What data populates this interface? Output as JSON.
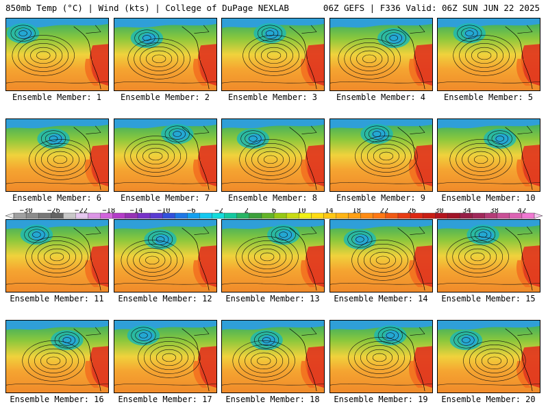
{
  "header": {
    "left": "850mb Temp (°C) | Wind (kts) | College of DuPage NEXLAB",
    "right": "06Z GEFS | F336 Valid: 06Z SUN JUN 22 2025"
  },
  "members": [
    {
      "label": "Ensemble Member: 1"
    },
    {
      "label": "Ensemble Member: 2"
    },
    {
      "label": "Ensemble Member: 3"
    },
    {
      "label": "Ensemble Member: 4"
    },
    {
      "label": "Ensemble Member: 5"
    },
    {
      "label": "Ensemble Member: 6"
    },
    {
      "label": "Ensemble Member: 7"
    },
    {
      "label": "Ensemble Member: 8"
    },
    {
      "label": "Ensemble Member: 9"
    },
    {
      "label": "Ensemble Member: 10"
    },
    {
      "label": "Ensemble Member: 11"
    },
    {
      "label": "Ensemble Member: 12"
    },
    {
      "label": "Ensemble Member: 13"
    },
    {
      "label": "Ensemble Member: 14"
    },
    {
      "label": "Ensemble Member: 15"
    },
    {
      "label": "Ensemble Member: 16"
    },
    {
      "label": "Ensemble Member: 17"
    },
    {
      "label": "Ensemble Member: 18"
    },
    {
      "label": "Ensemble Member: 19"
    },
    {
      "label": "Ensemble Member: 20"
    }
  ],
  "colorbar": {
    "labels": [
      "−30",
      "−26",
      "−22",
      "−18",
      "−14",
      "−10",
      "−6",
      "−2",
      "2",
      "6",
      "10",
      "14",
      "18",
      "22",
      "26",
      "30",
      "34",
      "38",
      "42"
    ],
    "colors": [
      "#a0a0a0",
      "#8c8c8c",
      "#787878",
      "#646464",
      "#c8c8c8",
      "#e6c8f0",
      "#dc96e6",
      "#d264dc",
      "#b43cc8",
      "#9632b4",
      "#7832c8",
      "#5a3cd2",
      "#3250dc",
      "#1e78e6",
      "#14a0f0",
      "#14c8f0",
      "#14dcdc",
      "#14c8a0",
      "#28b464",
      "#3ca03c",
      "#64b428",
      "#96c814",
      "#c8dc14",
      "#f0f014",
      "#ffdc14",
      "#ffc814",
      "#ffb414",
      "#ffa014",
      "#ff8c14",
      "#ff7814",
      "#f05a14",
      "#e63c14",
      "#dc2814",
      "#c81e14",
      "#b4141e",
      "#a01428",
      "#961e46",
      "#a0285a",
      "#b43c78",
      "#c85096",
      "#dc64b4",
      "#f078d2"
    ]
  }
}
